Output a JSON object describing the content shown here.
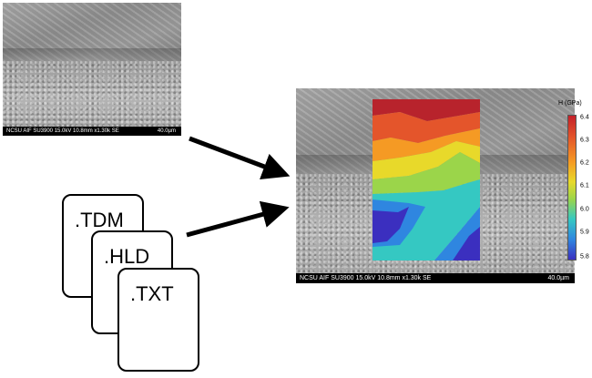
{
  "sem_images": {
    "small": {
      "caption_left": "NCSU AIF SU3900 15.0kV 10.8mm x1.30k SE",
      "caption_right": "40.0µm"
    },
    "large": {
      "caption_left": "NCSU AIF SU3900 15.0kV 10.8mm x1.30k SE",
      "caption_right": "40.0µm"
    }
  },
  "files": [
    {
      "label": ".TDM"
    },
    {
      "label": ".HLD"
    },
    {
      "label": ".TXT"
    }
  ],
  "colorbar": {
    "title": "H (GPa)",
    "ticks": [
      "6.4",
      "6.3",
      "6.2",
      "6.1",
      "6.0",
      "5.9",
      "5.8"
    ],
    "colors": [
      "#c4202a",
      "#e3552b",
      "#f59a24",
      "#e8d92a",
      "#9bd54a",
      "#35c8c2",
      "#2f86e0",
      "#3b2fbf"
    ]
  }
}
